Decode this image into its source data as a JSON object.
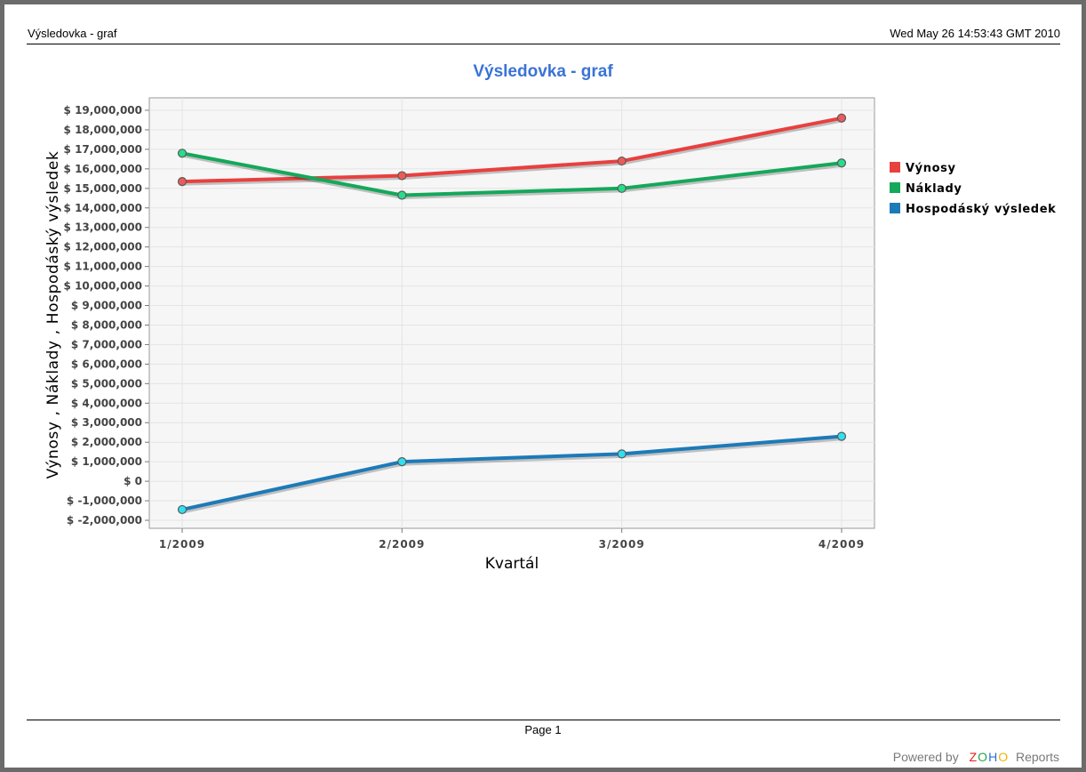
{
  "header": {
    "report_title": "Výsledovka - graf",
    "timestamp": "Wed May 26 14:53:43 GMT 2010"
  },
  "footer": {
    "page_label": "Page 1",
    "powered_by": "Powered by",
    "brand": "ZOHO",
    "product": "Reports"
  },
  "colors": {
    "title": "#3a73d6",
    "plot_bg": "#f6f6f6"
  },
  "chart_data": {
    "type": "line",
    "title": "Výsledovka - graf",
    "xlabel": "Kvartál",
    "ylabel": "Výnosy , Náklady , Hospodáský výsledek",
    "categories": [
      "1/2009",
      "2/2009",
      "3/2009",
      "4/2009"
    ],
    "ylim": [
      -2000000,
      19000000
    ],
    "ytick_step": 1000000,
    "grid": true,
    "legend_position": "right",
    "series": [
      {
        "name": "Výnosy",
        "color": "#e8403f",
        "marker_color": "#ee5a59",
        "values": [
          15350000,
          15650000,
          16400000,
          18600000
        ]
      },
      {
        "name": "Náklady",
        "color": "#14a85a",
        "marker_color": "#27dc8a",
        "values": [
          16800000,
          14650000,
          15000000,
          16300000
        ]
      },
      {
        "name": "Hospodáský výsledek",
        "color": "#1d7ab8",
        "marker_color": "#2fe0f0",
        "values": [
          -1450000,
          1000000,
          1400000,
          2300000
        ]
      }
    ]
  }
}
